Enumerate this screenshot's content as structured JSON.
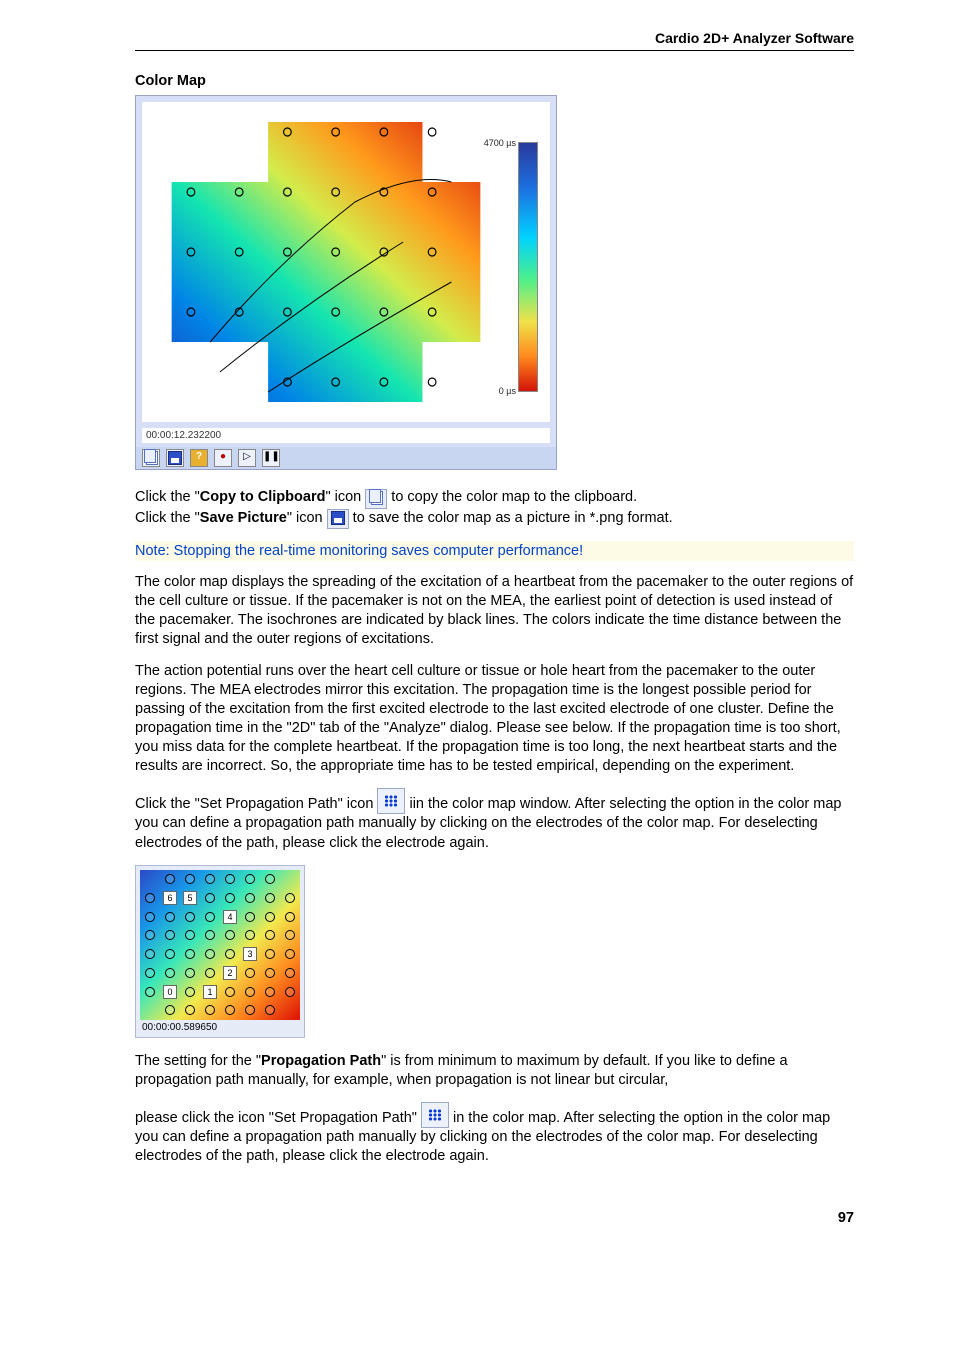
{
  "header": {
    "title": "Cardio 2D+ Analyzer Software"
  },
  "section_title": "Color Map",
  "main_figure": {
    "type": "heatmap",
    "timestamp": "00:00:12.232200",
    "background_color": "#ffffff",
    "frame_color": "#d6dff5",
    "colorbar": {
      "max_label": "4700 µs",
      "min_label": "0 µs",
      "gradient_top": "#293a9d",
      "gradient_bottom": "#d4130a"
    },
    "electrode_marker": {
      "shape": "circle",
      "stroke": "#000000",
      "radius": 4
    },
    "cross_layout_rows": 6,
    "cross_layout_cols": 6,
    "toolbar_icons": [
      "copy",
      "save",
      "help",
      "record",
      "play",
      "pause"
    ]
  },
  "para_copy_prefix": "Click the \"",
  "para_copy_bold": "Copy to Clipboard",
  "para_copy_mid": "\" icon ",
  "para_copy_suffix": " to copy the color map to the clipboard.",
  "para_save_prefix": "Click the \"",
  "para_save_bold": "Save Picture",
  "para_save_mid": "\" icon ",
  "para_save_suffix": " to save the color map as a picture in *.png format.",
  "note_text": "Note: Stopping the real-time monitoring saves computer performance!",
  "para_desc1": "The color map displays the spreading of the excitation of a heartbeat from the pacemaker to the outer regions of the cell culture or tissue. If the pacemaker is not on the MEA, the earliest point of detection is used instead of the pacemaker. The isochrones are indicated by black lines. The colors indicate the time distance between the first signal and the outer regions of excitations.",
  "para_desc2": "The action potential runs over the heart cell culture or tissue or hole heart from the pacemaker to the outer regions. The MEA electrodes mirror this excitation. The propagation time is the longest possible period for passing of the excitation from the first excited electrode to the last excited electrode of one cluster. Define the propagation time in the \"2D\" tab of the \"Analyze\" dialog. Please see below. If the propagation time is too short, you miss data for the complete heartbeat. If the propagation time is too long, the next heartbeat starts and the results are incorrect. So, the appropriate time has to be tested empirical, depending on the experiment.",
  "para_prop_pre": "Click the \"Set Propagation Path\" icon ",
  "para_prop_post": " iin the color map window. After selecting the option in the color map you can define a propagation path manually by clicking on the electrodes of the color map. For deselecting electrodes of the path, please click the electrode again.",
  "thumb": {
    "type": "heatmap",
    "timestamp": "00:00:00.589650",
    "grid": 8,
    "numbered_cells": [
      {
        "row": 1,
        "col": 1,
        "label": "6"
      },
      {
        "row": 1,
        "col": 2,
        "label": "5"
      },
      {
        "row": 2,
        "col": 4,
        "label": "4"
      },
      {
        "row": 4,
        "col": 5,
        "label": "3"
      },
      {
        "row": 5,
        "col": 4,
        "label": "2"
      },
      {
        "row": 6,
        "col": 1,
        "label": "0"
      },
      {
        "row": 6,
        "col": 3,
        "label": "1"
      }
    ]
  },
  "para_setting_pre": "The setting for the \"",
  "para_setting_bold": "Propagation Path",
  "para_setting_post": "\" is from minimum to maximum by default. If you like to define a propagation path manually, for example, when propagation is not linear but circular,",
  "para_setting2_pre": "please click the icon \"Set Propagation Path\" ",
  "para_setting2_post": " in the color map. After selecting the option in the color map you can define a propagation path manually by clicking on the electrodes of the color map. For deselecting electrodes of the path, please click the electrode again.",
  "page_number": "97"
}
